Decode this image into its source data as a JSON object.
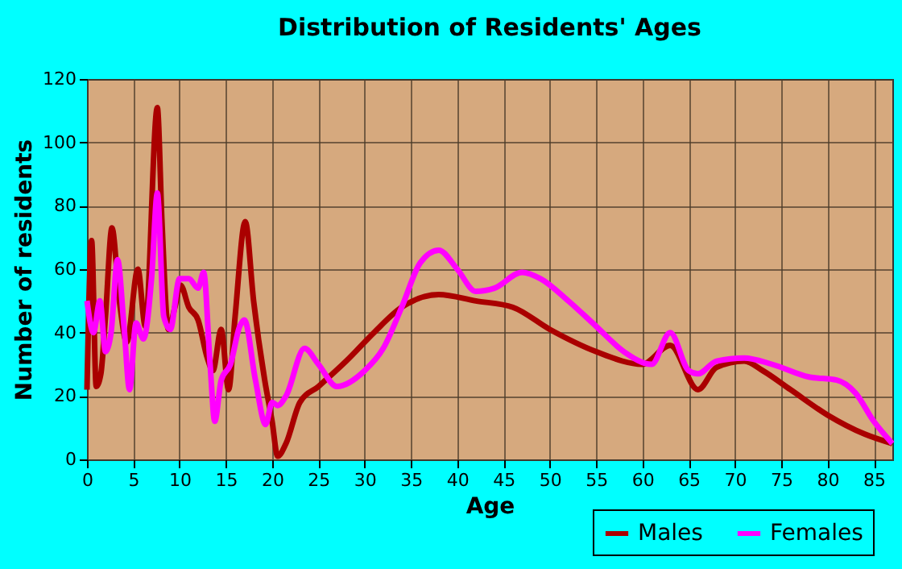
{
  "chart_data": {
    "type": "line",
    "title": "Distribution of Residents' Ages",
    "xlabel": "Age",
    "ylabel": "Number of residents",
    "xlim": [
      0,
      87
    ],
    "xticks": [
      0,
      5,
      10,
      15,
      20,
      25,
      30,
      35,
      40,
      45,
      50,
      55,
      60,
      65,
      70,
      75,
      80,
      85
    ],
    "ylim": [
      0,
      120
    ],
    "yticks": [
      0,
      20,
      40,
      60,
      80,
      100,
      120
    ],
    "grid": true,
    "legend": "bottom right",
    "line_style": "solid",
    "marker": "none",
    "series": [
      {
        "name": "Males",
        "color": "#aa0000",
        "x": [
          0,
          0.5,
          1,
          1.5,
          2,
          2.7,
          3.5,
          4.3,
          5.5,
          6.3,
          7.6,
          8.1,
          8.8,
          9.5,
          10.1,
          11,
          12,
          13,
          13.6,
          14.5,
          15.3,
          16,
          17.1,
          18,
          19.2,
          20,
          20.6,
          21.5,
          23,
          25,
          28,
          31,
          34,
          38,
          42,
          46,
          50,
          55,
          60,
          63,
          66,
          68,
          71,
          73,
          76,
          80,
          84,
          87
        ],
        "values": [
          22,
          69,
          23,
          27,
          45,
          73,
          50,
          37,
          60,
          42,
          111,
          75,
          41,
          48,
          55,
          48,
          44,
          32,
          28,
          41,
          22,
          45,
          75,
          50,
          25,
          12,
          1,
          5,
          18,
          23,
          31,
          40,
          48,
          52,
          50,
          48,
          41,
          34,
          30,
          36,
          22,
          29,
          31,
          28,
          22,
          14,
          8,
          5
        ]
      },
      {
        "name": "Females",
        "color": "#ff00ff",
        "x": [
          0,
          0.7,
          1.4,
          2,
          2.6,
          3.3,
          4,
          4.6,
          5.3,
          6.1,
          7,
          7.6,
          8.3,
          9,
          10,
          11,
          12,
          12.6,
          13.3,
          13.8,
          14.5,
          15.5,
          16.5,
          17,
          18.2,
          19.3,
          20,
          20.6,
          21.5,
          23.5,
          25,
          27,
          30,
          32,
          34,
          36,
          38,
          40,
          42,
          44,
          47,
          49,
          52,
          55,
          58,
          61,
          63,
          65,
          66,
          68,
          71,
          74,
          78,
          81,
          83,
          85,
          87
        ],
        "values": [
          50,
          40,
          50,
          34,
          40,
          63,
          42,
          22,
          43,
          38,
          58,
          84,
          45,
          41,
          57,
          57,
          54,
          59,
          30,
          12,
          25,
          30,
          42,
          44,
          25,
          11,
          18,
          17,
          20,
          35,
          30,
          23,
          28,
          35,
          48,
          62,
          66,
          60,
          53,
          54,
          59,
          57,
          50,
          42,
          34,
          30,
          40,
          28,
          27,
          31,
          32,
          30,
          26,
          25,
          21,
          12,
          5
        ]
      }
    ]
  }
}
